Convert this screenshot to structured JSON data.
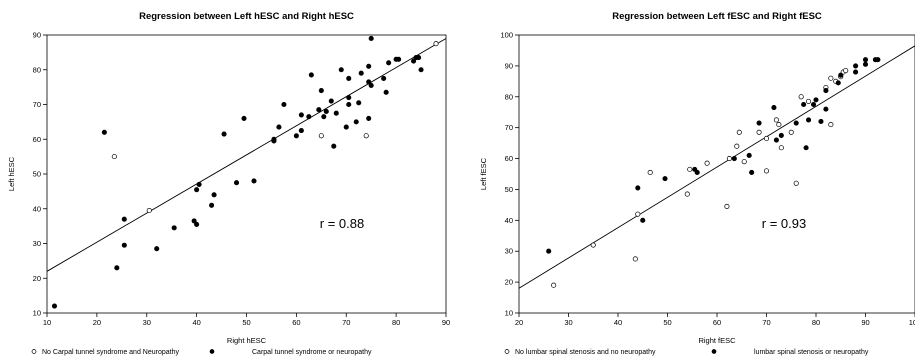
{
  "chart_data": [
    {
      "type": "scatter",
      "title": "Regression between Left hESC and Right hESC",
      "xlabel": "Right hESC",
      "ylabel": "Left hESC",
      "xlim": [
        10,
        90
      ],
      "ylim": [
        10,
        90
      ],
      "xticks": [
        10,
        20,
        30,
        40,
        50,
        60,
        70,
        80,
        90
      ],
      "yticks": [
        10,
        20,
        30,
        40,
        50,
        60,
        70,
        80,
        90
      ],
      "annotation": "r = 0.88",
      "regression_line": {
        "from": [
          10,
          22
        ],
        "to": [
          90,
          89
        ]
      },
      "series": [
        {
          "name": "No Carpal tunnel syndrome and Neuropathy",
          "marker": "open-circle",
          "points": [
            [
              23.5,
              55
            ],
            [
              30.5,
              39.5
            ],
            [
              65,
              61
            ],
            [
              74,
              61
            ],
            [
              88,
              87.5
            ]
          ]
        },
        {
          "name": "Carpal tunnel syndrome or neuropathy",
          "marker": "filled-circle",
          "points": [
            [
              11.5,
              12
            ],
            [
              21.5,
              62
            ],
            [
              24,
              23
            ],
            [
              25.5,
              29.5
            ],
            [
              25.5,
              37
            ],
            [
              32,
              28.5
            ],
            [
              35.5,
              34.5
            ],
            [
              39.5,
              36.5
            ],
            [
              40,
              35.5
            ],
            [
              40,
              45.5
            ],
            [
              40.5,
              47
            ],
            [
              43,
              41
            ],
            [
              43.5,
              44
            ],
            [
              45.5,
              61.5
            ],
            [
              48,
              47.5
            ],
            [
              49.5,
              66
            ],
            [
              51.5,
              48
            ],
            [
              55.5,
              59.5
            ],
            [
              55.5,
              60
            ],
            [
              56.5,
              63.5
            ],
            [
              57.5,
              70
            ],
            [
              60,
              61
            ],
            [
              61,
              62.5
            ],
            [
              61,
              67
            ],
            [
              62.5,
              66.5
            ],
            [
              63,
              78.5
            ],
            [
              64.5,
              68.5
            ],
            [
              65,
              74
            ],
            [
              65.5,
              66.5
            ],
            [
              66,
              68
            ],
            [
              67,
              71
            ],
            [
              67.5,
              58
            ],
            [
              68,
              67.5
            ],
            [
              69,
              80
            ],
            [
              70,
              63.5
            ],
            [
              70.5,
              70
            ],
            [
              70.5,
              72
            ],
            [
              70.5,
              77.5
            ],
            [
              72,
              65
            ],
            [
              72.5,
              70.5
            ],
            [
              73,
              79
            ],
            [
              74.5,
              81
            ],
            [
              74.5,
              76.5
            ],
            [
              74.5,
              66
            ],
            [
              75,
              75.5
            ],
            [
              75,
              89
            ],
            [
              77.5,
              77.5
            ],
            [
              78,
              73.5
            ],
            [
              78.5,
              82
            ],
            [
              80,
              83
            ],
            [
              80.5,
              83
            ],
            [
              83.5,
              82.5
            ],
            [
              84,
              83.5
            ],
            [
              84.5,
              83.5
            ],
            [
              85,
              80
            ]
          ]
        }
      ]
    },
    {
      "type": "scatter",
      "title": "Regression between Left fESC and Right fESC",
      "xlabel": "Right fESC",
      "ylabel": "Left fESC",
      "xlim": [
        20,
        100
      ],
      "ylim": [
        10,
        100
      ],
      "xticks": [
        20,
        30,
        40,
        50,
        60,
        70,
        80,
        90,
        100
      ],
      "yticks": [
        10,
        20,
        30,
        40,
        50,
        60,
        70,
        80,
        90,
        100
      ],
      "annotation": "r = 0.93",
      "regression_line": {
        "from": [
          20,
          18
        ],
        "to": [
          100,
          96.5
        ]
      },
      "series": [
        {
          "name": "No lumbar spinal stenosis and  no neuropathy",
          "marker": "open-circle",
          "points": [
            [
              27,
              19
            ],
            [
              35,
              32
            ],
            [
              43.5,
              27.5
            ],
            [
              44,
              42
            ],
            [
              46.5,
              55.5
            ],
            [
              54,
              48.5
            ],
            [
              54.5,
              56.5
            ],
            [
              58,
              58.5
            ],
            [
              62,
              44.5
            ],
            [
              62.5,
              60
            ],
            [
              64,
              64
            ],
            [
              64.5,
              68.5
            ],
            [
              65.5,
              59
            ],
            [
              68.5,
              68.5
            ],
            [
              70,
              56
            ],
            [
              70,
              66.5
            ],
            [
              72,
              72.5
            ],
            [
              72.5,
              71
            ],
            [
              73,
              63.5
            ],
            [
              75,
              68.5
            ],
            [
              76,
              52
            ],
            [
              77,
              80
            ],
            [
              78.5,
              78.5
            ],
            [
              82,
              83
            ],
            [
              83,
              71
            ],
            [
              83,
              86
            ],
            [
              84,
              85
            ],
            [
              85,
              86.5
            ],
            [
              85.5,
              88
            ],
            [
              86,
              88.5
            ]
          ]
        },
        {
          "name": "lumbar spinal stenosis or neuropathy",
          "marker": "filled-circle",
          "points": [
            [
              26,
              30
            ],
            [
              44,
              50.5
            ],
            [
              45,
              40
            ],
            [
              49.5,
              53.5
            ],
            [
              55.5,
              56.5
            ],
            [
              56,
              55.5
            ],
            [
              63.5,
              60
            ],
            [
              66.5,
              61
            ],
            [
              67,
              55.5
            ],
            [
              68.5,
              71.5
            ],
            [
              71.5,
              76.5
            ],
            [
              72,
              66
            ],
            [
              73,
              67.5
            ],
            [
              76,
              71.5
            ],
            [
              77.5,
              77.5
            ],
            [
              78,
              63.5
            ],
            [
              78.5,
              72.5
            ],
            [
              79.5,
              77.5
            ],
            [
              80,
              79
            ],
            [
              81,
              72
            ],
            [
              82,
              76
            ],
            [
              82,
              82
            ],
            [
              84.5,
              84.5
            ],
            [
              85,
              87
            ],
            [
              88,
              88
            ],
            [
              88,
              90
            ],
            [
              90,
              92
            ],
            [
              90,
              90.5
            ],
            [
              92,
              92
            ],
            [
              92.5,
              92
            ]
          ]
        }
      ]
    }
  ]
}
